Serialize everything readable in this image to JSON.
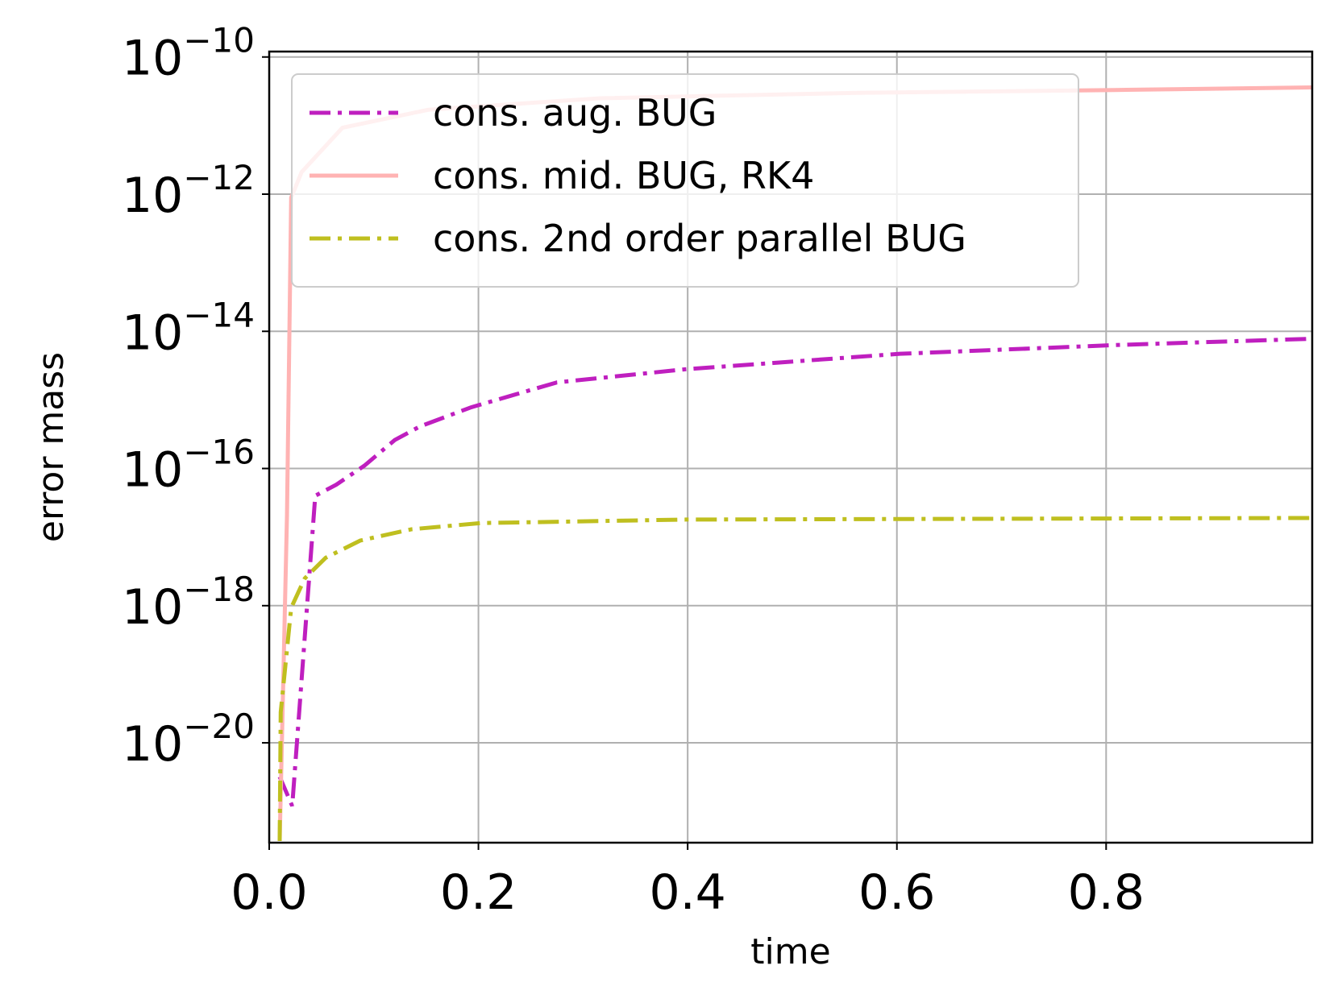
{
  "chart_data": {
    "type": "line",
    "xlabel": "time",
    "ylabel": "error mass",
    "yscale": "log",
    "grid": true,
    "legend": "upper left",
    "xlim": [
      0,
      0.997
    ],
    "ylim": [
      3.5e-22,
      1.2e-10
    ],
    "xticks": [
      {
        "value": 0,
        "label": "0.0"
      },
      {
        "value": 0.2,
        "label": "0.2"
      },
      {
        "value": 0.4,
        "label": "0.4"
      },
      {
        "value": 0.6,
        "label": "0.6"
      },
      {
        "value": 0.8,
        "label": "0.8"
      }
    ],
    "yticks": [
      {
        "value": 1e-10,
        "label": "10",
        "exponent": "−10"
      },
      {
        "value": 1e-12,
        "label": "10",
        "exponent": "−12"
      },
      {
        "value": 1e-14,
        "label": "10",
        "exponent": "−14"
      },
      {
        "value": 1e-16,
        "label": "10",
        "exponent": "−16"
      },
      {
        "value": 1e-18,
        "label": "10",
        "exponent": "−18"
      },
      {
        "value": 1e-20,
        "label": "10",
        "exponent": "−20"
      }
    ],
    "series": [
      {
        "name": "cons. aug. BUG",
        "color": "#bf1fbf",
        "linestyle": "-.",
        "x": [
          0.01,
          0.022,
          0.044,
          0.064,
          0.091,
          0.12,
          0.144,
          0.193,
          0.275,
          0.398,
          0.603,
          0.808,
          0.997
        ],
        "values": [
          3.2e-21,
          1.2e-21,
          4e-17,
          5.8e-17,
          1.1e-16,
          2.6e-16,
          4.1e-16,
          7.8e-16,
          1.8e-15,
          2.8e-15,
          4.7e-15,
          6.3e-15,
          7.8e-15
        ]
      },
      {
        "name": "cons. mid. BUG, RK4",
        "color": "#ffb3b3",
        "linestyle": "-",
        "x": [
          0.01,
          0.017,
          0.021,
          0.031,
          0.07,
          0.152,
          0.316,
          0.562,
          0.808,
          0.997
        ],
        "values": [
          3.7e-22,
          2.1e-17,
          8.9e-13,
          2.1e-12,
          9.3e-12,
          1.7e-11,
          2.5e-11,
          3e-11,
          3.3e-11,
          3.6e-11
        ]
      },
      {
        "name": "cons. 2nd order parallel BUG",
        "color": "#bfbf1f",
        "linestyle": "-.",
        "x": [
          0.01,
          0.011,
          0.021,
          0.034,
          0.054,
          0.087,
          0.136,
          0.202,
          0.398,
          0.997
        ],
        "values": [
          3.7e-22,
          2.8e-20,
          9.3e-19,
          2.5e-18,
          5e-18,
          8.9e-18,
          1.3e-17,
          1.6e-17,
          1.8e-17,
          1.9e-17
        ]
      }
    ]
  }
}
